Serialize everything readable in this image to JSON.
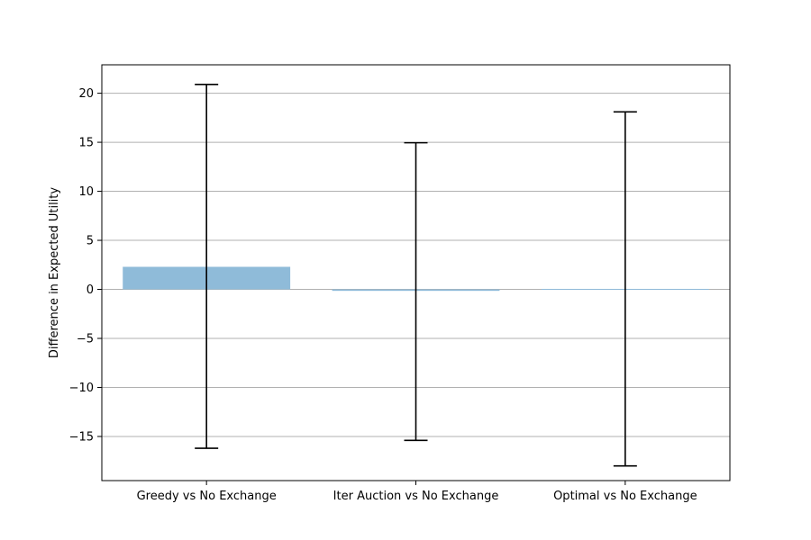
{
  "chart_data": {
    "type": "bar",
    "title": "",
    "xlabel": "",
    "ylabel": "Difference in Expected Utility",
    "categories": [
      "Greedy vs No Exchange",
      "Iter Auction vs No Exchange",
      "Optimal vs No Exchange"
    ],
    "values": [
      2.3,
      -0.15,
      0.05
    ],
    "error_low": [
      -16.2,
      -15.4,
      -18.0
    ],
    "error_high": [
      20.9,
      14.95,
      18.1
    ],
    "ylim": [
      -19.5,
      22.9
    ],
    "yticks": [
      -15,
      -10,
      -5,
      0,
      5,
      10,
      15,
      20
    ],
    "ytick_labels": [
      "−15",
      "−10",
      "−5",
      "0",
      "5",
      "10",
      "15",
      "20"
    ],
    "grid": "horizontal",
    "bar_color": "#8fbbd9",
    "error_color": "#000000",
    "grid_color": "#b0b0b0"
  }
}
